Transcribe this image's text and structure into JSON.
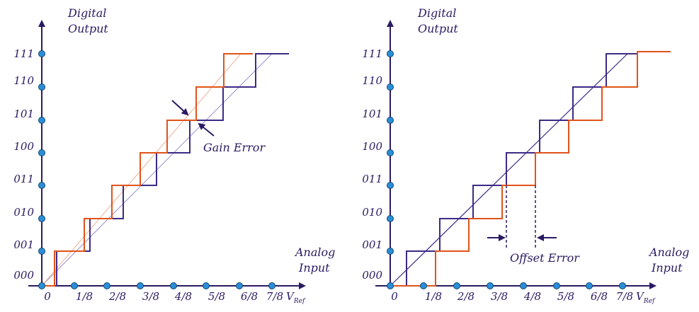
{
  "colors": {
    "axis": "#2b1a63",
    "ideal": "#3d2a86",
    "actual": "#e0531a",
    "dot_fill": "#2a8ed8",
    "dot_stroke": "#14466e"
  },
  "panels": [
    {
      "id": "gain",
      "y_title_line1": "Digital",
      "y_title_line2": "Output",
      "x_title_line1": "Analog",
      "x_title_line2": "Input",
      "y_codes": [
        "000",
        "001",
        "010",
        "011",
        "100",
        "101",
        "110",
        "111"
      ],
      "x_ticks": [
        "0",
        "1/8",
        "2/8",
        "3/8",
        "4/8",
        "5/8",
        "6/8",
        "7/8"
      ],
      "x_unit": "V",
      "x_unit_sub": "Ref",
      "annotation": "Gain Error"
    },
    {
      "id": "offset",
      "y_title_line1": "Digital",
      "y_title_line2": "Output",
      "x_title_line1": "Analog",
      "x_title_line2": "Input",
      "y_codes": [
        "000",
        "001",
        "010",
        "011",
        "100",
        "101",
        "110",
        "111"
      ],
      "x_ticks": [
        "0",
        "1/8",
        "2/8",
        "3/8",
        "4/8",
        "5/8",
        "6/8",
        "7/8"
      ],
      "x_unit": "V",
      "x_unit_sub": "Ref",
      "annotation": "Offset Error"
    }
  ]
}
